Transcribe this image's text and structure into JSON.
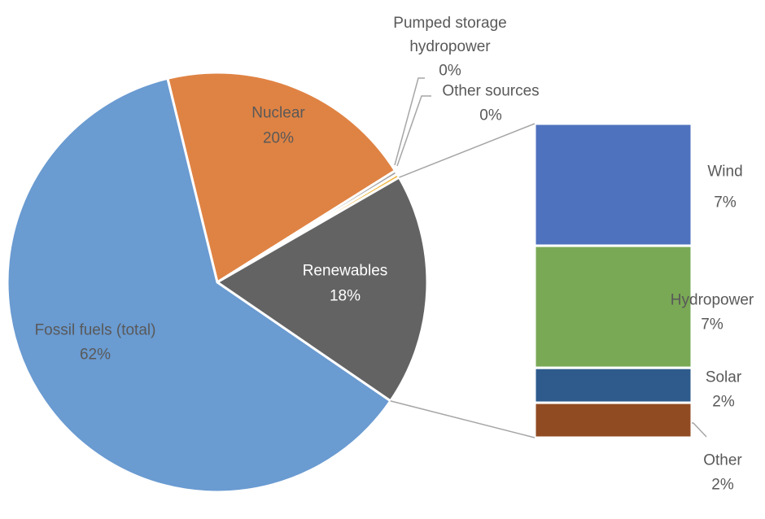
{
  "chart_data": {
    "type": "pie",
    "categories": [
      "Nuclear",
      "Pumped storage hydropower",
      "Other sources",
      "Renewables",
      "Fossil fuels (total)"
    ],
    "values": [
      20,
      0.3,
      0.3,
      18,
      62
    ],
    "value_labels": [
      "20%",
      "0%",
      "0%",
      "18%",
      "62%"
    ],
    "colors": [
      "#df8344",
      "#a5a5a5",
      "#f2b640",
      "#636363",
      "#6a9bd1"
    ],
    "breakdown": {
      "of": "Renewables",
      "categories": [
        "Wind",
        "Hydropower",
        "Solar",
        "Other"
      ],
      "values": [
        7,
        7,
        2,
        2
      ],
      "value_labels": [
        "7%",
        "7%",
        "2%",
        "2%"
      ],
      "colors": [
        "#4f72be",
        "#7aa955",
        "#2e5b8c",
        "#914b22"
      ]
    }
  }
}
